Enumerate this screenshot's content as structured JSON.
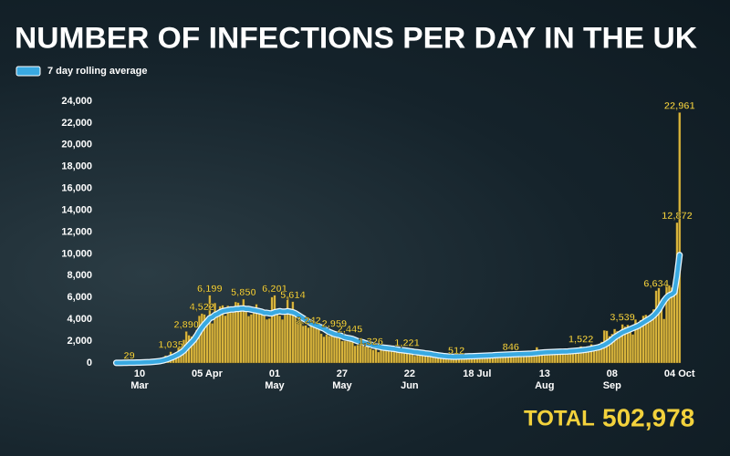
{
  "chart_data": {
    "type": "bar",
    "title": "NUMBER OF INFECTIONS PER DAY IN THE UK",
    "total_label": "TOTAL",
    "total_value": "502,978",
    "legend_position": "top-left",
    "grid": false,
    "ylim": [
      0,
      24000
    ],
    "yticks": [
      0,
      {
        "value": 2000,
        "label": "2,000"
      },
      {
        "value": 4000,
        "label": "4,000"
      },
      {
        "value": 6000,
        "label": "6,000"
      },
      {
        "value": 8000,
        "label": "8,000"
      },
      {
        "value": 10000,
        "label": "10,000"
      },
      {
        "value": 12000,
        "label": "12,000"
      },
      {
        "value": 14000,
        "label": "14,000"
      },
      {
        "value": 16000,
        "label": "16,000"
      },
      {
        "value": 18000,
        "label": "18,000"
      },
      {
        "value": 20000,
        "label": "20,000"
      },
      {
        "value": 22000,
        "label": "22,000"
      },
      {
        "value": 24000,
        "label": "24,000"
      }
    ],
    "categories": [
      null,
      null,
      null,
      null,
      null,
      null,
      null,
      null,
      null,
      "10 Mar",
      null,
      null,
      null,
      null,
      null,
      null,
      null,
      null,
      null,
      null,
      null,
      null,
      null,
      null,
      null,
      null,
      null,
      null,
      null,
      null,
      null,
      null,
      null,
      null,
      null,
      "05 Apr",
      null,
      null,
      null,
      null,
      null,
      null,
      null,
      null,
      null,
      null,
      null,
      null,
      null,
      null,
      null,
      null,
      null,
      null,
      null,
      null,
      null,
      null,
      null,
      null,
      null,
      "01 May",
      null,
      null,
      null,
      null,
      null,
      null,
      null,
      null,
      null,
      null,
      null,
      null,
      null,
      null,
      null,
      null,
      null,
      null,
      null,
      null,
      null,
      null,
      null,
      null,
      null,
      "27 May",
      null,
      null,
      null,
      null,
      null,
      null,
      null,
      null,
      null,
      null,
      null,
      null,
      null,
      null,
      null,
      null,
      null,
      null,
      null,
      null,
      null,
      null,
      null,
      null,
      null,
      "22 Jun",
      null,
      null,
      null,
      null,
      null,
      null,
      null,
      null,
      null,
      null,
      null,
      null,
      null,
      null,
      null,
      null,
      null,
      null,
      null,
      null,
      null,
      null,
      null,
      null,
      null,
      "18 Jul",
      null,
      null,
      null,
      null,
      null,
      null,
      null,
      null,
      null,
      null,
      null,
      null,
      null,
      null,
      null,
      null,
      null,
      null,
      null,
      null,
      null,
      null,
      null,
      null,
      null,
      "13 Aug",
      null,
      null,
      null,
      null,
      null,
      null,
      null,
      null,
      null,
      null,
      null,
      null,
      null,
      null,
      null,
      null,
      null,
      null,
      null,
      null,
      null,
      null,
      null,
      null,
      null,
      "08 Sep",
      null,
      null,
      null,
      null,
      null,
      null,
      null,
      null,
      null,
      null,
      null,
      null,
      null,
      null,
      null,
      null,
      null,
      null,
      null,
      null,
      null,
      null,
      null,
      null,
      null,
      "04 Oct"
    ],
    "color": "#d8b43c",
    "values": [
      12,
      13,
      23,
      25,
      36,
      29,
      48,
      45,
      67,
      46,
      50,
      83,
      134,
      117,
      152,
      208,
      250,
      296,
      408,
      676,
      643,
      1035,
      665,
      967,
      1427,
      1452,
      2129,
      2890,
      2546,
      2433,
      2619,
      3009,
      4324,
      4522,
      4450,
      3735,
      6199,
      3634,
      5491,
      4344,
      5195,
      5288,
      4342,
      5252,
      4603,
      4617,
      5599,
      5525,
      5234,
      5850,
      4676,
      4301,
      4451,
      4583,
      5386,
      4913,
      4463,
      4309,
      3996,
      4076,
      6032,
      6201,
      4806,
      4339,
      3985,
      4406,
      6111,
      5012,
      5614,
      4649,
      3896,
      3877,
      3403,
      3446,
      3242,
      3563,
      3451,
      3560,
      3450,
      2684,
      2412,
      2615,
      2472,
      2478,
      2959,
      2405,
      2570,
      2012,
      2013,
      2004,
      2445,
      1936,
      1570,
      1653,
      1871,
      1805,
      1650,
      1557,
      1326,
      1205,
      1741,
      1003,
      1266,
      1541,
      1425,
      1514,
      1056,
      1279,
      1218,
      1346,
      1115,
      958,
      1221,
      1014,
      874,
      653,
      1118,
      1118,
      1004,
      890,
      814,
      901,
      829,
      576,
      544,
      624,
      516,
      470,
      581,
      632,
      651,
      512,
      820,
      630,
      538,
      650,
      530,
      538,
      827,
      580,
      643,
      686,
      560,
      580,
      768,
      890,
      880,
      767,
      685,
      581,
      763,
      880,
      846,
      744,
      938,
      670,
      891,
      950,
      871,
      758,
      1062,
      1148,
      1441,
      1040,
      1009,
      713,
      1089,
      812,
      1182,
      1033,
      1288,
      1041,
      853,
      1025,
      1048,
      1276,
      1184,
      1276,
      1108,
      1522,
      1276,
      1465,
      1406,
      1715,
      1295,
      1508,
      1735,
      1940,
      2988,
      2948,
      2460,
      2659,
      3105,
      2919,
      2621,
      3539,
      3330,
      3497,
      3105,
      2621,
      3991,
      3395,
      3929,
      4322,
      4422,
      3899,
      4368,
      4926,
      6634,
      6874,
      5693,
      4044,
      7143,
      7108,
      6914,
      6968,
      12872,
      22961
    ],
    "value_labels": [
      null,
      null,
      null,
      null,
      null,
      "29",
      null,
      null,
      null,
      null,
      null,
      null,
      null,
      null,
      null,
      null,
      null,
      null,
      null,
      null,
      null,
      "1,035",
      null,
      null,
      null,
      null,
      null,
      "2,890",
      null,
      null,
      null,
      null,
      null,
      "4,522",
      null,
      null,
      "6,199",
      null,
      null,
      null,
      null,
      null,
      null,
      null,
      null,
      null,
      null,
      null,
      null,
      "5,850",
      null,
      null,
      null,
      null,
      null,
      null,
      null,
      null,
      null,
      null,
      null,
      "6,201",
      null,
      null,
      null,
      null,
      null,
      null,
      "5,614",
      null,
      null,
      null,
      null,
      null,
      "3,242",
      null,
      null,
      null,
      null,
      null,
      null,
      null,
      null,
      null,
      "2,959",
      null,
      null,
      null,
      null,
      null,
      "2,445",
      null,
      null,
      null,
      null,
      null,
      null,
      null,
      "1,326",
      null,
      null,
      null,
      null,
      null,
      null,
      null,
      null,
      null,
      null,
      null,
      null,
      null,
      "1,221",
      null,
      null,
      null,
      null,
      null,
      null,
      null,
      null,
      null,
      null,
      null,
      null,
      null,
      null,
      null,
      null,
      null,
      null,
      "512",
      null,
      null,
      null,
      null,
      null,
      null,
      null,
      null,
      null,
      null,
      null,
      null,
      null,
      null,
      null,
      null,
      null,
      null,
      null,
      null,
      "846",
      null,
      null,
      null,
      null,
      null,
      null,
      null,
      null,
      null,
      null,
      null,
      null,
      null,
      null,
      null,
      null,
      null,
      null,
      null,
      null,
      null,
      null,
      null,
      null,
      null,
      null,
      "1,522",
      null,
      null,
      null,
      null,
      null,
      null,
      null,
      null,
      null,
      null,
      null,
      null,
      null,
      null,
      null,
      "3,539",
      null,
      null,
      null,
      null,
      null,
      null,
      null,
      null,
      null,
      null,
      null,
      null,
      "6,634",
      null,
      null,
      null,
      null,
      null,
      null,
      null,
      "12,872",
      "22,961"
    ],
    "series": [
      {
        "name": "7 day rolling average",
        "color": "#39a9e1",
        "values": [
          10,
          12,
          15,
          18,
          22,
          27,
          32,
          35,
          40,
          45,
          50,
          60,
          70,
          80,
          100,
          125,
          150,
          180,
          230,
          300,
          370,
          470,
          560,
          680,
          800,
          950,
          1130,
          1400,
          1650,
          1900,
          2150,
          2500,
          2900,
          3250,
          3550,
          3800,
          4100,
          4200,
          4400,
          4500,
          4650,
          4750,
          4800,
          4850,
          4900,
          4900,
          4950,
          4950,
          5000,
          5000,
          4950,
          4950,
          4900,
          4850,
          4800,
          4750,
          4700,
          4600,
          4600,
          4550,
          4550,
          4650,
          4700,
          4750,
          4700,
          4700,
          4750,
          4700,
          4650,
          4550,
          4400,
          4250,
          4100,
          3950,
          3800,
          3650,
          3550,
          3450,
          3350,
          3250,
          3150,
          3000,
          2850,
          2750,
          2650,
          2600,
          2550,
          2450,
          2350,
          2300,
          2250,
          2200,
          2100,
          2000,
          1950,
          1900,
          1800,
          1750,
          1700,
          1600,
          1550,
          1500,
          1450,
          1400,
          1380,
          1350,
          1320,
          1300,
          1250,
          1200,
          1180,
          1150,
          1120,
          1080,
          1050,
          1000,
          980,
          950,
          920,
          880,
          860,
          830,
          780,
          740,
          700,
          670,
          640,
          620,
          600,
          580,
          570,
          570,
          580,
          590,
          600,
          610,
          620,
          620,
          630,
          640,
          650,
          660,
          670,
          680,
          690,
          700,
          720,
          730,
          740,
          750,
          760,
          770,
          780,
          790,
          800,
          810,
          820,
          830,
          840,
          850,
          860,
          880,
          900,
          930,
          950,
          970,
          980,
          990,
          1000,
          1010,
          1020,
          1030,
          1040,
          1050,
          1060,
          1080,
          1100,
          1120,
          1140,
          1160,
          1190,
          1220,
          1260,
          1300,
          1350,
          1400,
          1450,
          1550,
          1650,
          1800,
          1950,
          2150,
          2350,
          2500,
          2650,
          2800,
          2900,
          3000,
          3100,
          3200,
          3300,
          3400,
          3550,
          3700,
          3850,
          4000,
          4150,
          4350,
          4600,
          4900,
          5300,
          5700,
          6000,
          6200,
          6300,
          6500,
          8000,
          9900
        ]
      }
    ]
  }
}
